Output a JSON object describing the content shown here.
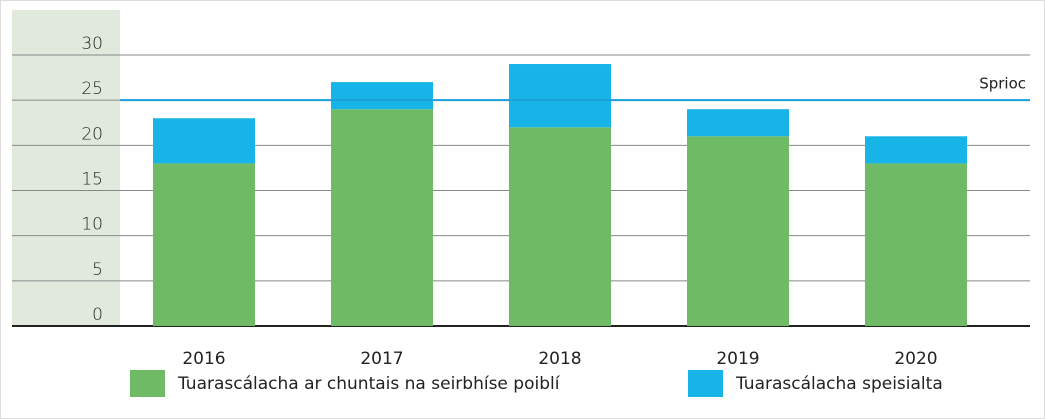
{
  "chart_data": {
    "type": "stacked-bar",
    "categories": [
      "2016",
      "2017",
      "2018",
      "2019",
      "2020"
    ],
    "series": [
      {
        "name": "Tuarascálacha ar chuntais na seirbhíse poiblí",
        "color": "#6fba65",
        "values": [
          18,
          24,
          22,
          21,
          18
        ]
      },
      {
        "name": "Tuarascálacha speisialta",
        "color": "#17b4e8",
        "values": [
          5,
          3,
          7,
          3,
          3
        ]
      }
    ],
    "ylim": [
      0,
      30
    ],
    "yticks": [
      0,
      5,
      10,
      15,
      20,
      25,
      30
    ],
    "grid": true,
    "target": {
      "value": 25,
      "label": "Sprioc",
      "color": "#1a9fd9"
    },
    "legend": "bottom"
  }
}
